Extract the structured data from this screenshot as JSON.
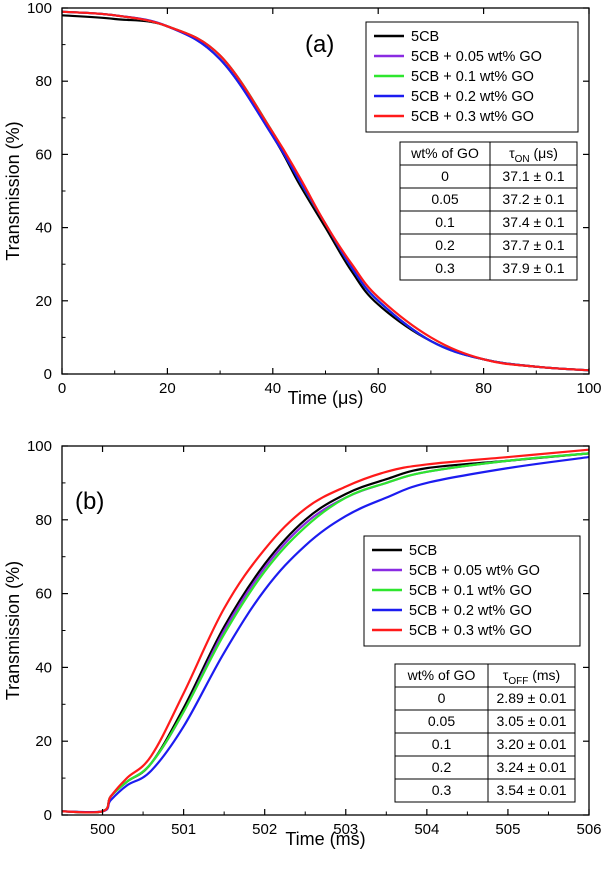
{
  "figure": {
    "panels": [
      "(a)",
      "(b)"
    ]
  },
  "chart_data": [
    {
      "panel": "(a)",
      "type": "line",
      "xlabel": "Time (μs)",
      "ylabel": "Transmission (%)",
      "xlim": [
        0,
        100
      ],
      "ylim": [
        0,
        100
      ],
      "x_ticks": [
        "0",
        "20",
        "40",
        "60",
        "80",
        "100"
      ],
      "y_ticks": [
        "0",
        "20",
        "40",
        "60",
        "80",
        "100"
      ],
      "legend": [
        "5CB",
        "5CB + 0.05 wt% GO",
        "5CB + 0.1 wt% GO",
        "5CB + 0.2 wt% GO",
        "5CB + 0.3 wt% GO"
      ],
      "series": [
        {
          "name": "5CB",
          "color": "#000000",
          "x": [
            0,
            10,
            20,
            30,
            40,
            45,
            50,
            55,
            60,
            70,
            80,
            90,
            100
          ],
          "values": [
            98,
            97,
            95,
            86,
            65,
            52,
            40,
            28,
            19,
            9,
            4,
            2,
            1
          ]
        },
        {
          "name": "5CB + 0.05 wt% GO",
          "color": "#8a2be2",
          "x": [
            0,
            10,
            20,
            30,
            40,
            45,
            50,
            55,
            60,
            70,
            80,
            90,
            100
          ],
          "values": [
            99,
            98,
            95,
            87,
            66,
            53,
            41,
            29,
            20,
            9,
            4,
            2,
            1
          ]
        },
        {
          "name": "5CB + 0.1 wt% GO",
          "color": "#2ee62e",
          "x": [
            0,
            10,
            20,
            30,
            40,
            45,
            50,
            55,
            60,
            70,
            80,
            90,
            100
          ],
          "values": [
            99,
            98,
            95,
            87,
            66,
            53,
            41,
            29,
            20,
            9,
            4,
            2,
            1
          ]
        },
        {
          "name": "5CB + 0.2 wt% GO",
          "color": "#1c1cf0",
          "x": [
            0,
            10,
            20,
            30,
            40,
            45,
            50,
            55,
            60,
            70,
            80,
            90,
            100
          ],
          "values": [
            99,
            98,
            95,
            86,
            65,
            53,
            41,
            29,
            20,
            9,
            4,
            2,
            1
          ]
        },
        {
          "name": "5CB + 0.3 wt% GO",
          "color": "#ff1a1a",
          "x": [
            0,
            10,
            20,
            30,
            40,
            45,
            50,
            55,
            60,
            70,
            80,
            90,
            100
          ],
          "values": [
            99,
            98,
            95,
            87,
            66,
            54,
            41,
            30,
            21,
            10,
            4,
            2,
            1
          ]
        }
      ],
      "table": {
        "headers": [
          "wt% of GO",
          "τON (μs)"
        ],
        "header_tau_main": "τ",
        "header_tau_sub": "ON",
        "header_tau_unit": " (μs)",
        "rows": [
          [
            "0",
            "37.1 ± 0.1"
          ],
          [
            "0.05",
            "37.2 ± 0.1"
          ],
          [
            "0.1",
            "37.4 ± 0.1"
          ],
          [
            "0.2",
            "37.7 ± 0.1"
          ],
          [
            "0.3",
            "37.9 ± 0.1"
          ]
        ]
      }
    },
    {
      "panel": "(b)",
      "type": "line",
      "xlabel": "Time (ms)",
      "ylabel": "Transmission (%)",
      "xlim": [
        499.5,
        506
      ],
      "ylim": [
        0,
        100
      ],
      "x_ticks": [
        "500",
        "501",
        "502",
        "503",
        "504",
        "505",
        "506"
      ],
      "y_ticks": [
        "0",
        "20",
        "40",
        "60",
        "80",
        "100"
      ],
      "legend": [
        "5CB",
        "5CB + 0.05 wt% GO",
        "5CB + 0.1 wt% GO",
        "5CB + 0.2 wt% GO",
        "5CB + 0.3 wt% GO"
      ],
      "series": [
        {
          "name": "5CB",
          "color": "#000000",
          "x": [
            499.5,
            500,
            500.1,
            500.3,
            500.6,
            501,
            501.5,
            502,
            502.5,
            503,
            503.5,
            504,
            505,
            506
          ],
          "values": [
            1,
            1,
            5,
            9,
            14,
            29,
            51,
            68,
            80,
            87,
            91,
            94,
            96,
            98
          ]
        },
        {
          "name": "5CB + 0.05 wt% GO",
          "color": "#8a2be2",
          "x": [
            499.5,
            500,
            500.1,
            500.3,
            500.6,
            501,
            501.5,
            502,
            502.5,
            503,
            503.5,
            504,
            505,
            506
          ],
          "values": [
            1,
            1,
            5,
            9,
            14,
            28,
            50,
            67,
            79,
            86,
            90,
            93,
            96,
            98
          ]
        },
        {
          "name": "5CB + 0.1 wt% GO",
          "color": "#2ee62e",
          "x": [
            499.5,
            500,
            500.1,
            500.3,
            500.6,
            501,
            501.5,
            502,
            502.5,
            503,
            503.5,
            504,
            505,
            506
          ],
          "values": [
            1,
            1,
            5,
            9,
            14,
            28,
            49,
            66,
            78,
            86,
            90,
            93,
            96,
            98
          ]
        },
        {
          "name": "5CB + 0.2 wt% GO",
          "color": "#1c1cf0",
          "x": [
            499.5,
            500,
            500.1,
            500.3,
            500.6,
            501,
            501.5,
            502,
            502.5,
            503,
            503.5,
            504,
            505,
            506
          ],
          "values": [
            1,
            1,
            4,
            8,
            12,
            24,
            44,
            61,
            73,
            81,
            86,
            90,
            94,
            97
          ]
        },
        {
          "name": "5CB + 0.3 wt% GO",
          "color": "#ff1a1a",
          "x": [
            499.5,
            500,
            500.1,
            500.3,
            500.6,
            501,
            501.5,
            502,
            502.5,
            503,
            503.5,
            504,
            505,
            506
          ],
          "values": [
            1,
            1,
            5,
            10,
            16,
            33,
            56,
            72,
            83,
            89,
            93,
            95,
            97,
            99
          ]
        }
      ],
      "table": {
        "headers": [
          "wt% of GO",
          "τOFF (ms)"
        ],
        "header_tau_main": "τ",
        "header_tau_sub": "OFF",
        "header_tau_unit": " (ms)",
        "rows": [
          [
            "0",
            "2.89 ± 0.01"
          ],
          [
            "0.05",
            "3.05 ± 0.01"
          ],
          [
            "0.1",
            "3.20 ± 0.01"
          ],
          [
            "0.2",
            "3.24 ± 0.01"
          ],
          [
            "0.3",
            "3.54 ± 0.01"
          ]
        ]
      }
    }
  ]
}
